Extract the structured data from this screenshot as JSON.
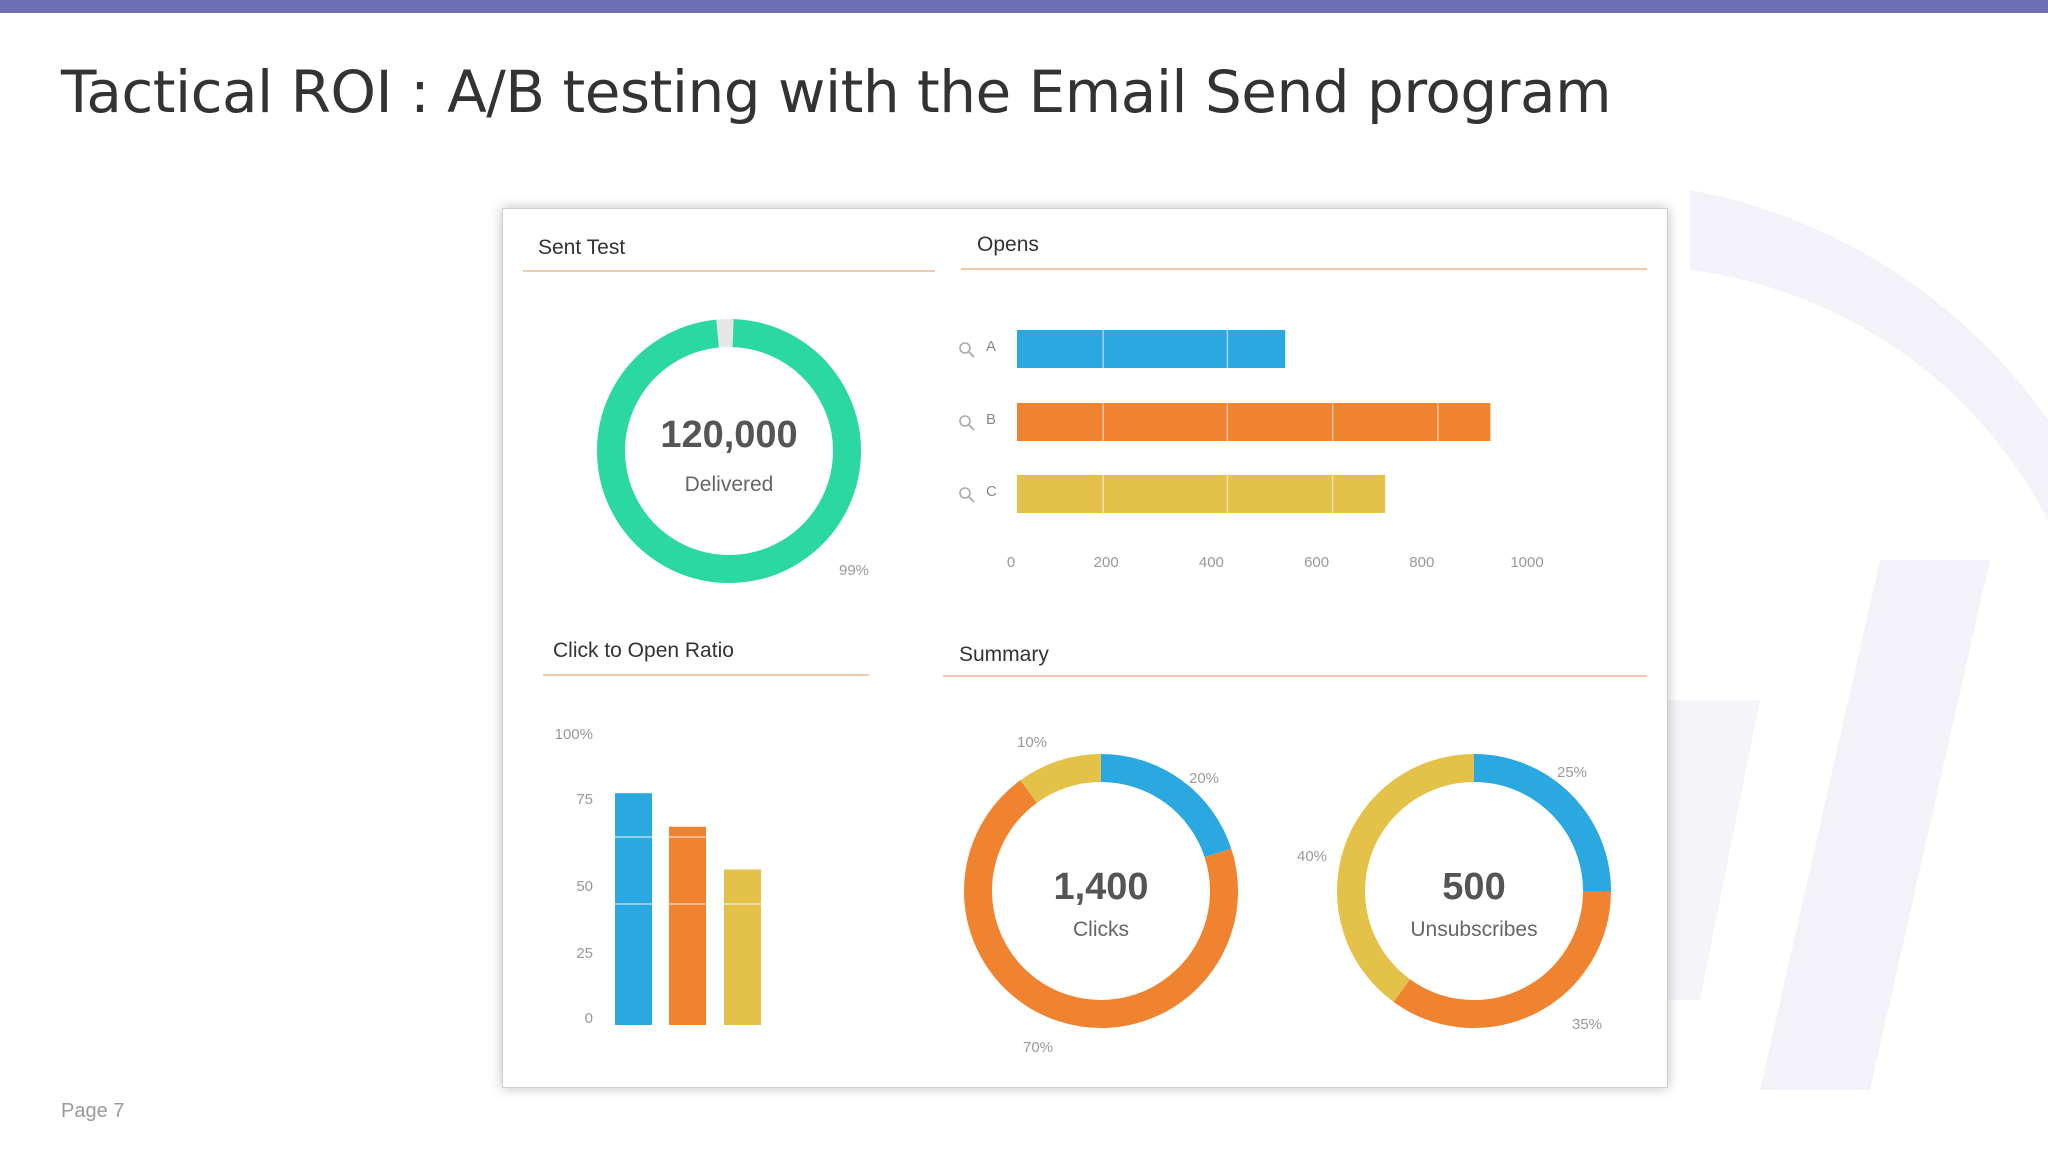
{
  "slide": {
    "title": "Tactical ROI : A/B testing with the Email Send program",
    "page": "Page 7",
    "accent_color": "#6f6db6"
  },
  "dashboard": {
    "sent_test": {
      "title": "Sent Test",
      "value": "120,000",
      "label": "Delivered",
      "percent_label": "99%",
      "percent": 99,
      "color": "#2bd8a2"
    },
    "opens": {
      "title": "Opens",
      "chart_data": {
        "type": "bar",
        "orientation": "horizontal",
        "categories": [
          "A",
          "B",
          "C"
        ],
        "values": [
          510,
          900,
          700
        ],
        "colors": [
          "#2aa8df",
          "#ef8330",
          "#e4c24a"
        ],
        "xlim": [
          0,
          1000
        ],
        "xticks": [
          "0",
          "200",
          "400",
          "600",
          "800",
          "1000"
        ],
        "icon": "search-icon"
      }
    },
    "click_to_open": {
      "title": "Click to Open Ratio",
      "chart_data": {
        "type": "bar",
        "values": [
          76,
          65,
          51
        ],
        "colors": [
          "#2aa8df",
          "#ef8330",
          "#e4c24a"
        ],
        "ylim": [
          0,
          100
        ],
        "yticks": [
          "0",
          "25",
          "50",
          "75",
          "100%"
        ]
      }
    },
    "summary": {
      "title": "Summary",
      "clicks": {
        "value": "1,400",
        "label": "Clicks",
        "chart_data": {
          "type": "pie",
          "values": [
            20,
            70,
            10
          ],
          "labels": [
            "20%",
            "70%",
            "10%"
          ],
          "colors": [
            "#2aa8df",
            "#ef8330",
            "#e4c24a"
          ]
        }
      },
      "unsubscribes": {
        "value": "500",
        "label": "Unsubscribes",
        "chart_data": {
          "type": "pie",
          "values": [
            25,
            35,
            40
          ],
          "labels": [
            "25%",
            "35%",
            "40%"
          ],
          "colors": [
            "#2aa8df",
            "#ef8330",
            "#e4c24a"
          ]
        }
      }
    }
  }
}
